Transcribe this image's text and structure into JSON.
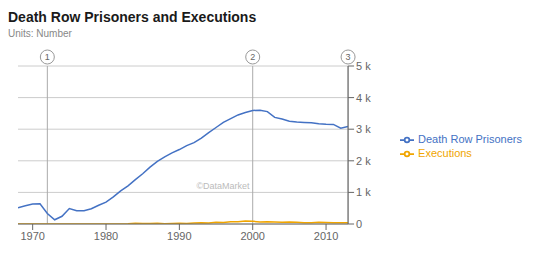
{
  "chart_data": {
    "type": "line",
    "title": "Death Row Prisoners and Executions",
    "subtitle": "Units: Number",
    "x": [
      1968,
      1969,
      1970,
      1971,
      1972,
      1973,
      1974,
      1975,
      1976,
      1977,
      1978,
      1979,
      1980,
      1981,
      1982,
      1983,
      1984,
      1985,
      1986,
      1987,
      1988,
      1989,
      1990,
      1991,
      1992,
      1993,
      1994,
      1995,
      1996,
      1997,
      1998,
      1999,
      2000,
      2001,
      2002,
      2003,
      2004,
      2005,
      2006,
      2007,
      2008,
      2009,
      2010,
      2011,
      2012,
      2013
    ],
    "series": [
      {
        "name": "Death Row Prisoners",
        "color": "#4472c4",
        "values": [
          517,
          575,
          631,
          642,
          334,
          134,
          244,
          488,
          420,
          423,
          482,
          593,
          691,
          856,
          1050,
          1209,
          1405,
          1591,
          1800,
          1984,
          2124,
          2250,
          2356,
          2482,
          2575,
          2716,
          2890,
          3054,
          3219,
          3335,
          3452,
          3527,
          3593,
          3601,
          3557,
          3374,
          3320,
          3254,
          3228,
          3215,
          3207,
          3173,
          3158,
          3152,
          3033,
          3088
        ]
      },
      {
        "name": "Executions",
        "color": "#f0a500",
        "values": [
          0,
          0,
          0,
          0,
          0,
          0,
          1,
          0,
          0,
          1,
          0,
          2,
          0,
          1,
          2,
          5,
          21,
          18,
          18,
          25,
          11,
          16,
          23,
          14,
          31,
          38,
          31,
          56,
          45,
          74,
          68,
          98,
          85,
          66,
          71,
          65,
          59,
          60,
          53,
          42,
          37,
          52,
          46,
          43,
          43,
          39
        ]
      }
    ],
    "xlim": [
      1968,
      2013
    ],
    "xticks": [
      1970,
      1980,
      1990,
      2000,
      2010
    ],
    "ylim": [
      0,
      5000
    ],
    "yticks": [
      0,
      {
        "value": 1000,
        "label": "1 k"
      },
      {
        "value": 2000,
        "label": "2 k"
      },
      {
        "value": 3000,
        "label": "3 k"
      },
      {
        "value": 4000,
        "label": "4 k"
      },
      {
        "value": 5000,
        "label": "5 k"
      }
    ],
    "grid": true,
    "legend": "right",
    "annotations": [
      {
        "x": 1972,
        "text": "1"
      },
      {
        "x": 2000,
        "text": "2"
      },
      {
        "x": 2013,
        "text": "3"
      },
      {
        "text": "©DataMarket"
      }
    ]
  }
}
